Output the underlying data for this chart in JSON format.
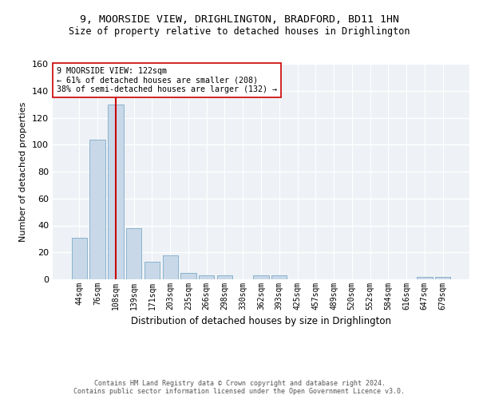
{
  "title1": "9, MOORSIDE VIEW, DRIGHLINGTON, BRADFORD, BD11 1HN",
  "title2": "Size of property relative to detached houses in Drighlington",
  "xlabel": "Distribution of detached houses by size in Drighlington",
  "ylabel": "Number of detached properties",
  "categories": [
    "44sqm",
    "76sqm",
    "108sqm",
    "139sqm",
    "171sqm",
    "203sqm",
    "235sqm",
    "266sqm",
    "298sqm",
    "330sqm",
    "362sqm",
    "393sqm",
    "425sqm",
    "457sqm",
    "489sqm",
    "520sqm",
    "552sqm",
    "584sqm",
    "616sqm",
    "647sqm",
    "679sqm"
  ],
  "values": [
    31,
    104,
    130,
    38,
    13,
    18,
    5,
    3,
    3,
    0,
    3,
    3,
    0,
    0,
    0,
    0,
    0,
    0,
    0,
    2,
    2
  ],
  "bar_color": "#c8d8e8",
  "bar_edge_color": "#7faac8",
  "red_line_x": 2,
  "red_line_color": "#cc0000",
  "annotation_line1": "9 MOORSIDE VIEW: 122sqm",
  "annotation_line2": "← 61% of detached houses are smaller (208)",
  "annotation_line3": "38% of semi-detached houses are larger (132) →",
  "annotation_box_color": "white",
  "annotation_box_edge_color": "#cc0000",
  "ylim": [
    0,
    160
  ],
  "yticks": [
    0,
    20,
    40,
    60,
    80,
    100,
    120,
    140,
    160
  ],
  "background_color": "#eef2f6",
  "grid_color": "white",
  "footer_line1": "Contains HM Land Registry data © Crown copyright and database right 2024.",
  "footer_line2": "Contains public sector information licensed under the Open Government Licence v3.0."
}
